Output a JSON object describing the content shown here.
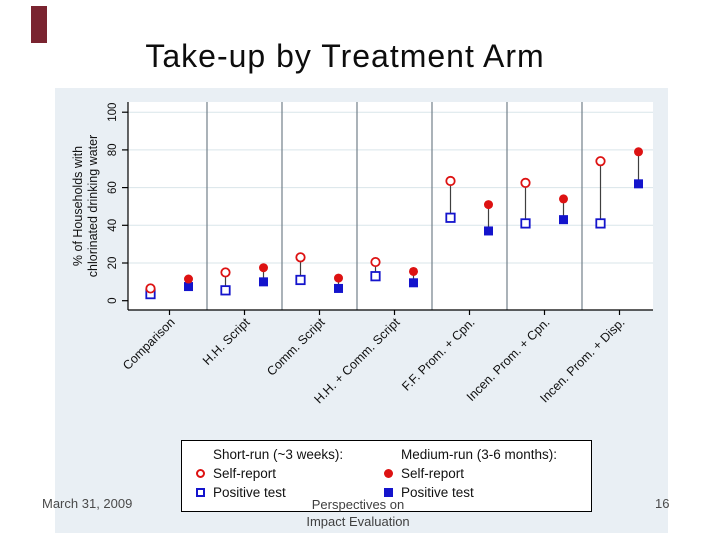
{
  "slide": {
    "title": "Take-up by Treatment Arm",
    "accent_color": "#7a2430",
    "footer": {
      "date": "March 31, 2009",
      "center_line1": "Perspectives on",
      "center_line2": "Impact Evaluation",
      "page_number": "16"
    }
  },
  "chart_data": {
    "type": "scatter",
    "title": "Take-up by Treatment Arm",
    "ylabel_line1": "% of Households with",
    "ylabel_line2": "chlorinated drinking water",
    "xlabel": "",
    "ylim": [
      0,
      100
    ],
    "yticks": [
      0,
      20,
      40,
      60,
      80,
      100
    ],
    "grid": true,
    "background_color": "#e9eff4",
    "plot_color": "#ffffff",
    "gridline_color": "#d9e5ea",
    "separator_color": "#73808a",
    "connector_color": "#3f3f3f",
    "categories": [
      "Comparison",
      "H.H. Script",
      "Comm. Script",
      "H.H. + Comm. Script",
      "F.F. Prom. + Cpn.",
      "Incen. Prom. + Cpn.",
      "Incen. Prom. + Disp."
    ],
    "series": [
      {
        "name": "Short-run Self-report",
        "marker": "circle-hollow",
        "color": "#dd1212",
        "values": [
          6.5,
          15,
          23,
          20.5,
          63.5,
          62.5,
          74
        ]
      },
      {
        "name": "Short-run Positive test",
        "marker": "square-hollow",
        "color": "#1414cc",
        "values": [
          3.5,
          5.5,
          11,
          13,
          44,
          41,
          41
        ]
      },
      {
        "name": "Medium-run Self-report",
        "marker": "circle-filled",
        "color": "#dd1212",
        "values": [
          11.5,
          17.5,
          12,
          15.5,
          51,
          54,
          79
        ]
      },
      {
        "name": "Medium-run Positive test",
        "marker": "square-filled",
        "color": "#1414cc",
        "values": [
          7.5,
          10,
          6.5,
          9.5,
          37,
          43,
          62
        ]
      }
    ],
    "legend": {
      "position": "bottom",
      "columns": [
        {
          "header": "Short-run (~3 weeks):",
          "items": [
            {
              "marker": "circle-hollow",
              "label": "Self-report"
            },
            {
              "marker": "square-hollow",
              "label": "Positive test"
            }
          ]
        },
        {
          "header": "Medium-run (3-6 months):",
          "items": [
            {
              "marker": "circle-filled",
              "label": "Self-report"
            },
            {
              "marker": "square-filled",
              "label": "Positive test"
            }
          ]
        }
      ]
    }
  }
}
